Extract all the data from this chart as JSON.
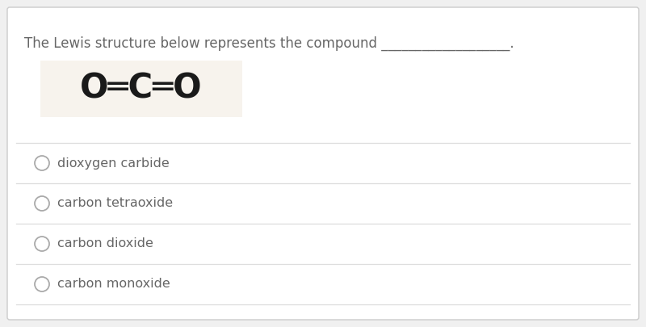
{
  "title_text": "The Lewis structure below represents the compound ___________________.",
  "formula_display": "O═C═O",
  "choices": [
    "dioxygen carbide",
    "carbon tetraoxide",
    "carbon dioxide",
    "carbon monoxide"
  ],
  "bg_color": "#f0f0f0",
  "card_bg": "#ffffff",
  "card_border": "#cccccc",
  "title_color": "#666666",
  "formula_color": "#1a1a1a",
  "choice_color": "#666666",
  "divider_color": "#dddddd",
  "circle_color": "#aaaaaa",
  "formula_bg": "#f7f3ed",
  "title_fontsize": 12,
  "formula_fontsize": 30,
  "choice_fontsize": 11.5
}
